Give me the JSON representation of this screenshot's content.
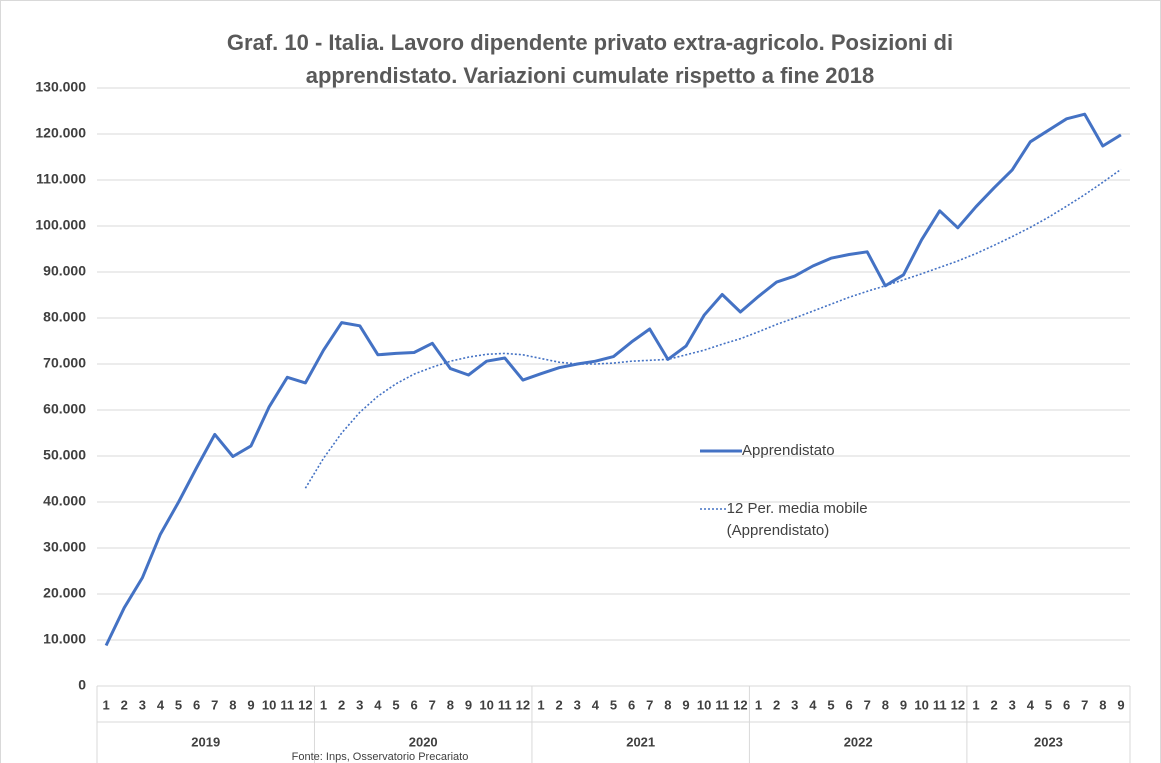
{
  "chart_data": {
    "type": "line",
    "title": "Graf. 10 - Italia. Lavoro dipendente privato extra-agricolo. Posizioni di apprendistato. Variazioni cumulate rispetto a fine 2018",
    "source": "Fonte: Inps, Osservatorio Precariato",
    "categories": [
      "1",
      "2",
      "3",
      "4",
      "5",
      "6",
      "7",
      "8",
      "9",
      "10",
      "11",
      "12",
      "1",
      "2",
      "3",
      "4",
      "5",
      "6",
      "7",
      "8",
      "9",
      "10",
      "11",
      "12",
      "1",
      "2",
      "3",
      "4",
      "5",
      "6",
      "7",
      "8",
      "9",
      "10",
      "11",
      "12",
      "1",
      "2",
      "3",
      "4",
      "5",
      "6",
      "7",
      "8",
      "9",
      "10",
      "11",
      "12",
      "1",
      "2",
      "3",
      "4",
      "5",
      "6",
      "7",
      "8",
      "9"
    ],
    "years": [
      "2019",
      "2020",
      "2021",
      "2022",
      "2023"
    ],
    "series": [
      {
        "name": "Apprendistato",
        "color": "#4472c4",
        "style": "solid",
        "values": [
          8800,
          17000,
          23500,
          33000,
          40000,
          47500,
          54700,
          49900,
          52200,
          60700,
          67100,
          65900,
          73000,
          79000,
          78300,
          72000,
          72300,
          72500,
          74500,
          69000,
          67600,
          70600,
          71300,
          66500,
          67900,
          69200,
          70000,
          70600,
          71600,
          74800,
          77600,
          71000,
          73900,
          80600,
          85100,
          81300,
          84700,
          87800,
          89100,
          91300,
          93000,
          93800,
          94400,
          87000,
          89400,
          97000,
          103300,
          99600,
          104200,
          108300,
          112200,
          118300,
          120800,
          123300,
          124300,
          117400,
          119800
        ]
      },
      {
        "name": "12 Per. media mobile (Apprendistato)",
        "color": "#4472c4",
        "style": "dotted",
        "values": [
          null,
          null,
          null,
          null,
          null,
          null,
          null,
          null,
          null,
          null,
          null,
          43000,
          49500,
          55000,
          59500,
          63000,
          65700,
          67800,
          69300,
          70600,
          71500,
          72100,
          72300,
          72000,
          71200,
          70400,
          70000,
          70000,
          70200,
          70600,
          70800,
          71000,
          72000,
          73000,
          74300,
          75500,
          77000,
          78600,
          80000,
          81500,
          83000,
          84500,
          85800,
          87000,
          88300,
          89600,
          91000,
          92400,
          94000,
          95800,
          97700,
          99700,
          101900,
          104300,
          106800,
          109500,
          112300
        ]
      }
    ],
    "ylim": [
      0,
      130000
    ],
    "yticks": [
      0,
      {
        "value": 10000,
        "label": "10.000"
      },
      {
        "value": 20000,
        "label": "20.000"
      },
      {
        "value": 30000,
        "label": "30.000"
      },
      {
        "value": 40000,
        "label": "40.000"
      },
      {
        "value": 50000,
        "label": "50.000"
      },
      {
        "value": 60000,
        "label": "60.000"
      },
      {
        "value": 70000,
        "label": "70.000"
      },
      {
        "value": 80000,
        "label": "80.000"
      },
      {
        "value": 90000,
        "label": "90.000"
      },
      {
        "value": 100000,
        "label": "100.000"
      },
      {
        "value": 110000,
        "label": "110.000"
      },
      {
        "value": 120000,
        "label": "120.000"
      },
      {
        "value": 130000,
        "label": "130.000"
      }
    ],
    "grid": true,
    "legend": "right"
  }
}
